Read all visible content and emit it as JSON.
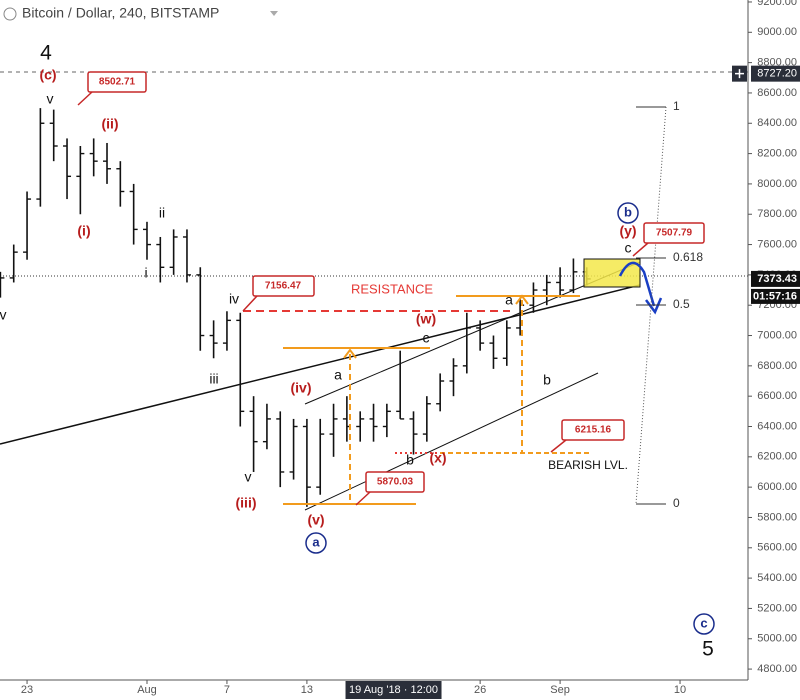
{
  "chart_data": {
    "type": "ohlc",
    "title": "Bitcoin / Dollar, 240, BITSTAMP",
    "color": "#111111",
    "x": [
      -2,
      -1,
      0,
      1,
      2,
      3,
      4,
      5,
      6,
      7,
      8,
      9,
      10,
      11,
      12,
      13,
      14,
      15,
      16,
      17,
      18,
      19,
      20,
      21,
      22,
      23,
      24,
      25,
      26,
      27,
      28,
      29,
      30,
      31,
      32,
      33,
      34,
      35,
      36,
      37,
      38,
      39,
      40,
      41,
      42
    ],
    "open": [
      7300,
      7380,
      7550,
      7900,
      8400,
      8250,
      8050,
      8200,
      8150,
      8100,
      7950,
      7700,
      7600,
      7450,
      7650,
      7400,
      7000,
      6950,
      7100,
      6500,
      6300,
      6450,
      6100,
      6400,
      6000,
      6350,
      6450,
      6400,
      6450,
      6400,
      6500,
      6450,
      6350,
      6550,
      6700,
      6800,
      7050,
      6950,
      6850,
      7050,
      7200,
      7300,
      7350,
      7300,
      7420
    ],
    "high": [
      7420,
      7600,
      7950,
      8500,
      8490,
      8300,
      8250,
      8300,
      8270,
      8150,
      8000,
      7750,
      7650,
      7700,
      7700,
      7450,
      7100,
      7160,
      7150,
      6600,
      6550,
      6500,
      6450,
      6450,
      6450,
      6550,
      6600,
      6500,
      6550,
      6550,
      6900,
      6500,
      6600,
      6750,
      6850,
      7150,
      7100,
      7000,
      7100,
      7250,
      7350,
      7400,
      7450,
      7508,
      7450
    ],
    "low": [
      7250,
      7350,
      7500,
      7850,
      8150,
      7900,
      7800,
      8050,
      8000,
      7850,
      7600,
      7500,
      7350,
      7400,
      7350,
      6900,
      6850,
      6900,
      6400,
      6100,
      6250,
      6000,
      6050,
      5870,
      5950,
      6200,
      6300,
      6300,
      6300,
      6330,
      6450,
      6215,
      6300,
      6500,
      6600,
      6750,
      6900,
      6780,
      6800,
      7000,
      7150,
      7200,
      7250,
      7280,
      7330
    ],
    "close": [
      7380,
      7550,
      7900,
      8400,
      8250,
      8050,
      8200,
      8150,
      8100,
      7950,
      7700,
      7600,
      7450,
      7650,
      7400,
      7000,
      6950,
      7100,
      6500,
      6300,
      6450,
      6100,
      6400,
      6000,
      6350,
      6450,
      6400,
      6450,
      6400,
      6500,
      6450,
      6350,
      6550,
      6700,
      6800,
      7050,
      6950,
      6850,
      7050,
      7200,
      7300,
      7350,
      7300,
      7420,
      7373.43
    ],
    "xlim": [
      -2.03,
      54.1
    ],
    "xticks": [
      {
        "value": 0,
        "label": "23"
      },
      {
        "value": 9,
        "label": "Aug"
      },
      {
        "value": 15,
        "label": "7"
      },
      {
        "value": 21,
        "label": "13"
      },
      {
        "value": 34,
        "label": "26"
      },
      {
        "value": 40,
        "label": "Sep"
      },
      {
        "value": 49,
        "label": "10"
      }
    ],
    "ylim": [
      4728,
      9213
    ],
    "yticks": [
      {
        "value": 4800,
        "label": "4800.00"
      },
      {
        "value": 5000,
        "label": "5000.00"
      },
      {
        "value": 5200,
        "label": "5200.00"
      },
      {
        "value": 5400,
        "label": "5400.00"
      },
      {
        "value": 5600,
        "label": "5600.00"
      },
      {
        "value": 5800,
        "label": "5800.00"
      },
      {
        "value": 6000,
        "label": "6000.00"
      },
      {
        "value": 6200,
        "label": "6200.00"
      },
      {
        "value": 6400,
        "label": "6400.00"
      },
      {
        "value": 6600,
        "label": "6600.00"
      },
      {
        "value": 6800,
        "label": "6800.00"
      },
      {
        "value": 7000,
        "label": "7000.00"
      },
      {
        "value": 7200,
        "label": "7200.00"
      },
      {
        "value": 7400,
        "label": "7400.00"
      },
      {
        "value": 7600,
        "label": "7600.00"
      },
      {
        "value": 7800,
        "label": "7800.00"
      },
      {
        "value": 8000,
        "label": "8000.00"
      },
      {
        "value": 8200,
        "label": "8200.00"
      },
      {
        "value": 8400,
        "label": "8400.00"
      },
      {
        "value": 8600,
        "label": "8600.00"
      },
      {
        "value": 8800,
        "label": "8800.00"
      },
      {
        "value": 9000,
        "label": "9000.00"
      },
      {
        "value": 9200,
        "label": "9200.00"
      }
    ],
    "crosshair_x": {
      "value": 27.5,
      "label": "19 Aug '18 · 12:00"
    },
    "crosshair_price": {
      "value": 8727.2,
      "label": "8727.20"
    },
    "countdown": "01:57:16",
    "price_labels": [
      8502.71,
      7156.47,
      5870.03,
      6215.16,
      7507.79
    ],
    "fib_labels": [
      1,
      0.618,
      0.5,
      0
    ],
    "annotations": [
      "4",
      "(c)",
      "v",
      "(i)",
      "(ii)",
      "ii",
      "i",
      "iv",
      "iii",
      "v",
      "(iii)",
      "(iv)",
      "a",
      "(v)",
      "a",
      "(w)",
      "c",
      "b",
      "(x)",
      "a",
      "b",
      "(y)",
      "c",
      "b",
      "c",
      "5",
      "v",
      "RESISTANCE",
      "BEARISH LVL."
    ]
  }
}
